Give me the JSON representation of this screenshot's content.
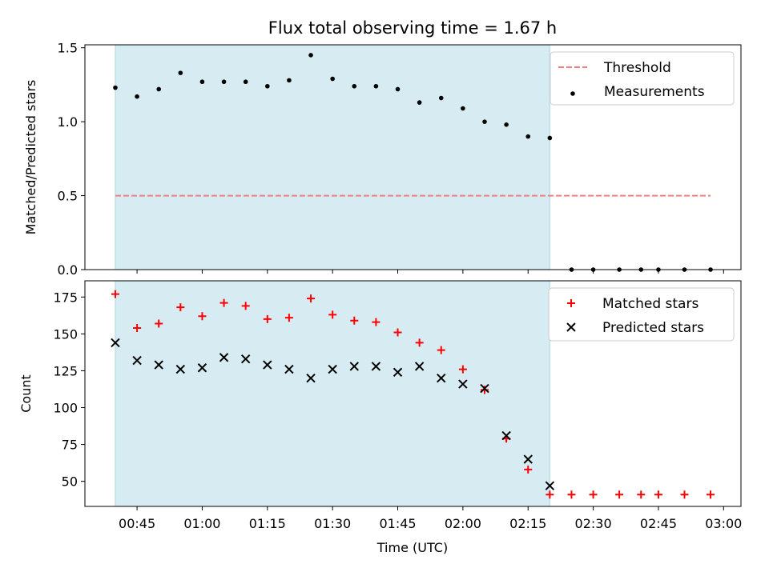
{
  "title": "Flux total observing time = 1.67 h",
  "xlabel": "Time (UTC)",
  "colors": {
    "span": "#add8e6",
    "threshold": "#f08080",
    "measure": "#000000",
    "matched": "#ff0000",
    "predicted": "#000000"
  },
  "chart_data": [
    {
      "type": "scatter",
      "ylabel": "Matched/Predicted stars",
      "xlim": [
        "00:33",
        "03:04"
      ],
      "ylim": [
        0,
        1.52
      ],
      "yticks": [
        0,
        0.5,
        1.0,
        1.5
      ],
      "ytick_labels": [
        "0.0",
        "0.5",
        "1.0",
        "1.5"
      ],
      "shaded_span": {
        "from": "00:40",
        "to": "02:20"
      },
      "threshold": {
        "name": "Threshold",
        "value": 0.5,
        "x_from": "00:40",
        "x_to": "02:57"
      },
      "series": [
        {
          "name": "Measurements",
          "x": [
            "00:40",
            "00:45",
            "00:50",
            "00:55",
            "01:00",
            "01:05",
            "01:10",
            "01:15",
            "01:20",
            "01:25",
            "01:30",
            "01:35",
            "01:40",
            "01:45",
            "01:50",
            "01:55",
            "02:00",
            "02:05",
            "02:10",
            "02:15",
            "02:20",
            "02:25",
            "02:30",
            "02:36",
            "02:41",
            "02:45",
            "02:51",
            "02:57"
          ],
          "y": [
            1.23,
            1.17,
            1.22,
            1.33,
            1.27,
            1.27,
            1.27,
            1.24,
            1.28,
            1.45,
            1.29,
            1.24,
            1.24,
            1.22,
            1.13,
            1.16,
            1.09,
            1.0,
            0.98,
            0.9,
            0.89,
            0,
            0,
            0,
            0,
            0,
            0,
            0
          ]
        }
      ],
      "legend": {
        "placement": "top-right",
        "entries": [
          "Threshold",
          "Measurements"
        ]
      }
    },
    {
      "type": "scatter",
      "ylabel": "Count",
      "xlim": [
        "00:33",
        "03:04"
      ],
      "ylim": [
        33,
        186
      ],
      "yticks": [
        50,
        75,
        100,
        125,
        150,
        175
      ],
      "ytick_labels": [
        "50",
        "75",
        "100",
        "125",
        "150",
        "175"
      ],
      "xticks": [
        "00:45",
        "01:00",
        "01:15",
        "01:30",
        "01:45",
        "02:00",
        "02:15",
        "02:30",
        "02:45",
        "03:00"
      ],
      "shaded_span": {
        "from": "00:40",
        "to": "02:20"
      },
      "series": [
        {
          "name": "Matched stars",
          "marker": "plus",
          "x": [
            "00:40",
            "00:45",
            "00:50",
            "00:55",
            "01:00",
            "01:05",
            "01:10",
            "01:15",
            "01:20",
            "01:25",
            "01:30",
            "01:35",
            "01:40",
            "01:45",
            "01:50",
            "01:55",
            "02:00",
            "02:05",
            "02:10",
            "02:15",
            "02:20",
            "02:25",
            "02:30",
            "02:36",
            "02:41",
            "02:45",
            "02:51",
            "02:57"
          ],
          "y": [
            177,
            154,
            157,
            168,
            162,
            171,
            169,
            160,
            161,
            174,
            163,
            159,
            158,
            151,
            144,
            139,
            126,
            112,
            79,
            58,
            41,
            41,
            41,
            41,
            41,
            41,
            41,
            41
          ]
        },
        {
          "name": "Predicted stars",
          "marker": "x",
          "x": [
            "00:40",
            "00:45",
            "00:50",
            "00:55",
            "01:00",
            "01:05",
            "01:10",
            "01:15",
            "01:20",
            "01:25",
            "01:30",
            "01:35",
            "01:40",
            "01:45",
            "01:50",
            "01:55",
            "02:00",
            "02:05",
            "02:10",
            "02:15",
            "02:20"
          ],
          "y": [
            144,
            132,
            129,
            126,
            127,
            134,
            133,
            129,
            126,
            120,
            126,
            128,
            128,
            124,
            128,
            120,
            116,
            113,
            81,
            65,
            47
          ]
        }
      ],
      "legend": {
        "placement": "top-right",
        "entries": [
          "Matched stars",
          "Predicted stars"
        ]
      }
    }
  ]
}
